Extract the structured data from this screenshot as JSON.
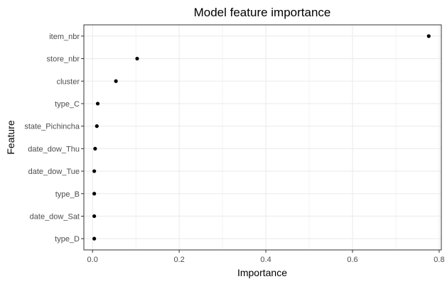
{
  "chart_data": {
    "type": "scatter",
    "title": "Model feature importance",
    "xlabel": "Importance",
    "ylabel": "Feature",
    "xlim": [
      -0.02,
      0.805
    ],
    "x_ticks": [
      0,
      0.2,
      0.4,
      0.6,
      0.8
    ],
    "x_tick_labels": [
      "0.0",
      "0.2",
      "0.4",
      "0.6",
      "0.8"
    ],
    "grid": true,
    "legend": "none",
    "categories": [
      "item_nbr",
      "store_nbr",
      "cluster",
      "type_C",
      "state_Pichincha",
      "date_dow_Thu",
      "date_dow_Tue",
      "type_B",
      "date_dow_Sat",
      "type_D"
    ],
    "values": [
      0.776,
      0.103,
      0.054,
      0.012,
      0.01,
      0.006,
      0.004,
      0.004,
      0.004,
      0.004
    ],
    "colors": {
      "point": "#000000",
      "panel_border": "#333333",
      "grid": "#ebebeb",
      "tick_label": "#4d4d4d",
      "axis_title": "#000000"
    }
  }
}
